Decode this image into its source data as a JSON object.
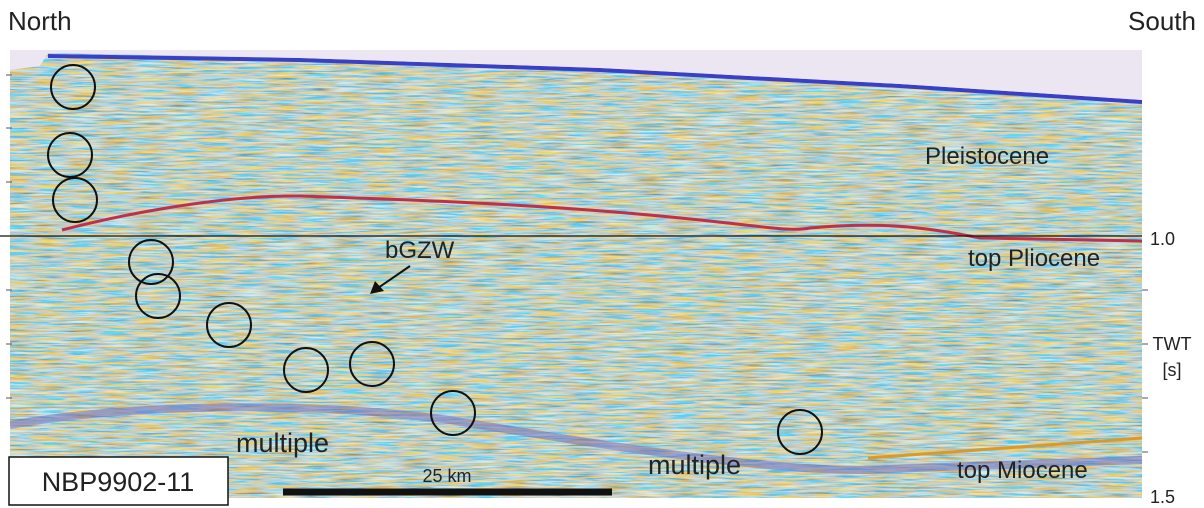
{
  "header": {
    "left": "North",
    "right": "South"
  },
  "labels": {
    "pleistocene": "Pleistocene",
    "top_pliocene": "top Pliocene",
    "bgzw": "bGZW",
    "multiple_left": "multiple",
    "multiple_right": "multiple",
    "top_miocene": "top Miocene"
  },
  "scale_bar": "25 km",
  "profile": "NBP9902-11",
  "axis": {
    "label": "TWT",
    "unit": "[s]",
    "ticks": [
      "1.0",
      "1.5"
    ]
  }
}
